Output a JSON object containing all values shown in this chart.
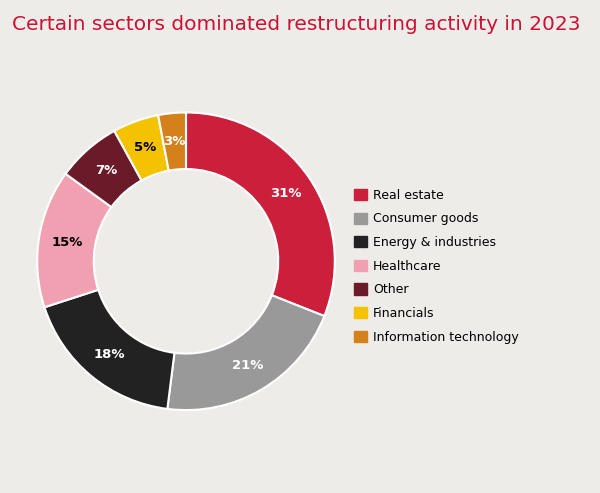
{
  "title": "Certain sectors dominated restructuring activity in 2023",
  "title_color": "#cc1133",
  "title_fontsize": 14.5,
  "background_color": "#eeece9",
  "labels": [
    "Real estate",
    "Consumer goods",
    "Energy & industries",
    "Healthcare",
    "Other",
    "Financials",
    "Information technology"
  ],
  "values": [
    31,
    21,
    18,
    15,
    7,
    5,
    3
  ],
  "colors": [
    "#cc1f3c",
    "#999999",
    "#222222",
    "#f0a0b0",
    "#6b1a2a",
    "#f5c200",
    "#d4811c"
  ],
  "pct_labels": [
    "31%",
    "21%",
    "18%",
    "15%",
    "7%",
    "5%",
    "3%"
  ],
  "pct_text_colors": [
    "white",
    "white",
    "white",
    "black",
    "white",
    "black",
    "white"
  ],
  "donut_width": 0.38,
  "startangle": 90
}
